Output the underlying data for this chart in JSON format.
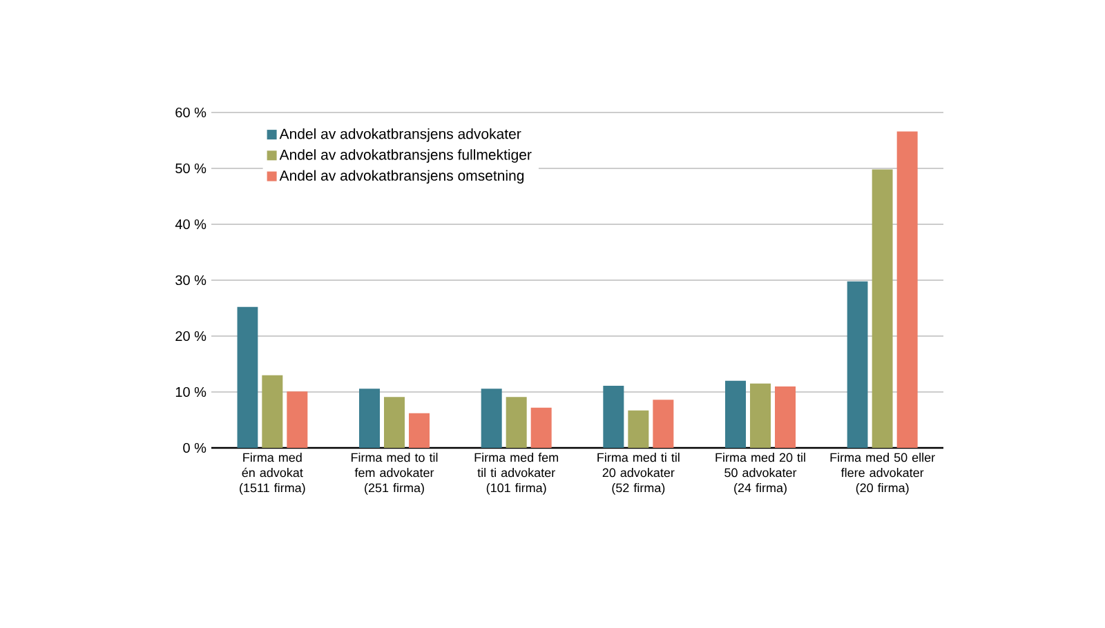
{
  "chart_data": {
    "type": "bar",
    "categories": [
      "Firma med én advokat (1511 firma)",
      "Firma med to til fem advokater (251 firma)",
      "Firma med fem til ti advokater (101 firma)",
      "Firma med ti til 20 advokater (52 firma)",
      "Firma med 20 til 50 advokater (24 firma)",
      "Firma med 50 eller flere advokater (20 firma)"
    ],
    "series": [
      {
        "name": "Andel av advokatbransjens advokater",
        "color": "#3a7d8f",
        "values": [
          25.2,
          10.6,
          10.6,
          11.1,
          12.0,
          29.8
        ]
      },
      {
        "name": "Andel av advokatbransjens fullmektiger",
        "color": "#a6a95e",
        "values": [
          13.0,
          9.1,
          9.1,
          6.7,
          11.5,
          49.8
        ]
      },
      {
        "name": "Andel av advokatbransjens omsetning",
        "color": "#ec7c66",
        "values": [
          10.1,
          6.2,
          7.2,
          8.6,
          11.0,
          56.6
        ]
      }
    ],
    "ylim": [
      0,
      60
    ],
    "yticks": [
      {
        "value": 0,
        "label": "0 %"
      },
      {
        "value": 10,
        "label": "10 %"
      },
      {
        "value": 20,
        "label": "20 %"
      },
      {
        "value": 30,
        "label": "30 %"
      },
      {
        "value": 40,
        "label": "40 %"
      },
      {
        "value": 50,
        "label": "50 %"
      },
      {
        "value": 60,
        "label": "60 %"
      }
    ],
    "grid": "y",
    "legend": "top left"
  }
}
